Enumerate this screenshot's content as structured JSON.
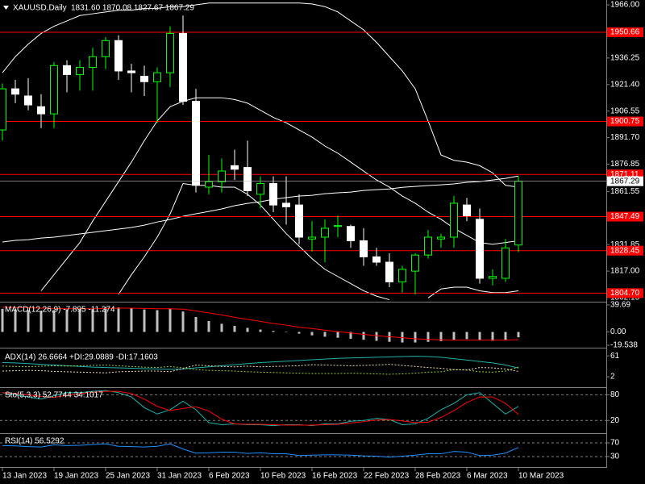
{
  "chart_data": [
    {
      "type": "candlestick",
      "title": "XAUUSD,Daily",
      "title_values": "1831.60 1870.08 1827.67 1867.29",
      "categories": [
        "13 Jan 2023",
        null,
        null,
        null,
        "19 Jan 2023",
        null,
        null,
        null,
        "25 Jan 2023",
        null,
        null,
        null,
        "31 Jan 2023",
        null,
        null,
        null,
        "6 Feb 2023",
        null,
        null,
        null,
        "10 Feb 2023",
        null,
        null,
        null,
        "16 Feb 2023",
        null,
        null,
        null,
        "22 Feb 2023",
        null,
        null,
        null,
        "28 Feb 2023",
        null,
        null,
        null,
        "6 Mar 2023",
        null,
        null,
        null,
        "10 Mar 2023"
      ],
      "open": [
        1896,
        1919,
        1915,
        1909,
        1905,
        1932,
        1927,
        1931,
        1937,
        1946,
        1929,
        1926,
        1923,
        1928,
        1950,
        1912,
        1864,
        1867,
        1876,
        1875,
        1860,
        1866,
        1855,
        1854,
        1835,
        1836,
        1842,
        1842,
        1834,
        1825,
        1822,
        1811,
        1817,
        1826,
        1835,
        1836,
        1854,
        1846,
        1813,
        1813,
        1831.6
      ],
      "high": [
        1922,
        1924,
        1925,
        1916,
        1934,
        1935,
        1935,
        1942,
        1948,
        1949,
        1933,
        1932,
        1931,
        1954,
        1960,
        1919,
        1882,
        1880,
        1885,
        1890,
        1870,
        1870,
        1870,
        1860,
        1845,
        1846,
        1848,
        1843,
        1841,
        1830,
        1827,
        1820,
        1827,
        1840,
        1838,
        1859,
        1858,
        1852,
        1818,
        1835,
        1870.08
      ],
      "low": [
        1890,
        1911,
        1907,
        1897,
        1897,
        1917,
        1918,
        1918,
        1930,
        1924,
        1917,
        1915,
        1900,
        1920,
        1910,
        1861,
        1860,
        1861,
        1868,
        1859,
        1852,
        1850,
        1843,
        1832,
        1828,
        1822,
        1836,
        1830,
        1820,
        1820,
        1808,
        1805,
        1804,
        1824,
        1830,
        1830,
        1845,
        1810,
        1809,
        1811,
        1827.67
      ],
      "close": [
        1919,
        1916,
        1910,
        1905,
        1932,
        1927,
        1931,
        1937,
        1946,
        1929,
        1928,
        1923,
        1928,
        1950,
        1912,
        1865,
        1867,
        1873,
        1874,
        1862,
        1866,
        1854,
        1853,
        1836,
        1836,
        1841,
        1842.5,
        1834,
        1825,
        1822,
        1811,
        1818,
        1826,
        1836,
        1836,
        1855,
        1848,
        1813,
        1814,
        1830,
        1867.29
      ],
      "up_color": "#00ff00",
      "down_color": "#ffffff",
      "overlays": [
        {
          "color": "#ffffff",
          "values": [
            1928,
            1937,
            1944,
            1950,
            1954,
            1957,
            1960,
            1961,
            1962,
            1963,
            1963,
            1964,
            1964,
            1965,
            1965,
            1966,
            1967,
            1967,
            1967,
            1967,
            1967,
            1967,
            1967,
            1967,
            1966.5,
            1965,
            1962,
            1957,
            1952,
            1945,
            1937,
            1929,
            1919,
            1901,
            1882,
            1879,
            1878,
            1876,
            1872,
            1865,
            1864
          ]
        },
        {
          "color": "#ffffff",
          "values": [
            null,
            null,
            null,
            1806,
            1815,
            1824,
            1833,
            1845,
            1856,
            1867,
            1878,
            1890,
            1901,
            1909,
            1912,
            1914,
            1914,
            1914,
            1913,
            1911,
            1907,
            1903,
            1900,
            1896,
            1892,
            1887,
            1883,
            1878,
            1873,
            1868,
            1864,
            1859,
            1855,
            1850,
            1846,
            1841,
            1837,
            1833,
            1832,
            1833,
            1834
          ]
        },
        {
          "color": "#ffffff",
          "values": [
            null,
            null,
            null,
            null,
            null,
            null,
            null,
            null,
            null,
            1804,
            1815,
            1825,
            1836,
            1849,
            1866,
            1865,
            1865,
            1864,
            1864,
            1860,
            1854,
            1846,
            1838,
            1831,
            1824,
            1818,
            1814,
            1810,
            1806,
            1803,
            1801,
            null,
            null,
            1802,
            1807,
            1808,
            1808,
            1806,
            1805,
            1805,
            1806
          ]
        },
        {
          "color": "#ffffff",
          "values": [
            1833.3,
            1834.2,
            1834.6,
            1835.5,
            1836,
            1836.9,
            1837.8,
            1838.7,
            1839.6,
            1840.5,
            1841.4,
            1842.7,
            1844.5,
            1845.9,
            1847.7,
            1849.1,
            1850.4,
            1851.8,
            1853.6,
            1854.9,
            1855.8,
            1857.2,
            1858.1,
            1859,
            1859.4,
            1860.3,
            1860.8,
            1861.2,
            1862.1,
            1862.6,
            1863,
            1863.9,
            1864.4,
            1864.9,
            1865.3,
            1865.8,
            1866.7,
            1867.1,
            1868,
            1868.9,
            1870.2
          ]
        }
      ],
      "levels": [
        1950.66,
        1900.75,
        1871.11,
        1847.49,
        1828.45,
        {
          "value": 1804.7,
          "label": "1804.70"
        }
      ],
      "level_color": "#ff0000",
      "ylim": [
        1800.8,
        1968.7
      ],
      "yticks": [
        {
          "value": 1966,
          "label": "1966.00"
        },
        1936.25,
        {
          "value": 1921.4,
          "label": "1921.40"
        },
        1906.55,
        {
          "value": 1891.7,
          "label": "1891.70"
        },
        1876.85,
        1861.55,
        1831.85,
        {
          "value": 1817,
          "label": "1817.00"
        },
        1802.15
      ]
    },
    {
      "type": "macd",
      "label": "MACD(12,26,9) -7.895 -11.274",
      "color": "#c0c0c0",
      "signal_color": "#ff0000",
      "values": [
        34,
        33,
        32,
        31,
        32,
        33,
        33,
        34,
        36,
        36,
        35,
        33,
        32,
        34,
        30,
        22,
        16,
        12,
        9,
        6,
        3.5,
        1.5,
        -0.5,
        -2.5,
        -5,
        -7,
        -8.5,
        -10,
        -11.5,
        -13,
        -14.5,
        -15.5,
        -15.5,
        -14.5,
        -13.5,
        -11.5,
        -10.5,
        -12,
        -13,
        -12.5,
        -7.895
      ],
      "signal": [
        36.5,
        36,
        35.5,
        35,
        34.5,
        34,
        34,
        34,
        34.5,
        35,
        35,
        34.5,
        34,
        34,
        33.5,
        31,
        28,
        25,
        21.5,
        18.5,
        15.5,
        12.5,
        10,
        7,
        5,
        2.5,
        0.5,
        -1.5,
        -3.5,
        -5.5,
        -7,
        -8.5,
        -10,
        -11,
        -11.5,
        -12,
        -12,
        -12,
        -12,
        -12,
        -11.274
      ],
      "ylim": [
        -19.538,
        39.69
      ],
      "yticks": [
        39.69,
        {
          "value": 0,
          "label": "0.00"
        },
        -19.538
      ]
    },
    {
      "type": "line",
      "label": "ADX(14) 26.6664 +DI:29.0889 -DI:17.1603",
      "ylim": [
        -23,
        75
      ],
      "yticks": [
        61,
        2
      ],
      "level_lines": false,
      "series": [
        {
          "color": "#20b2aa",
          "style": "solid",
          "values": [
            42,
            41,
            39,
            37,
            35,
            33,
            31,
            29,
            28,
            27,
            26,
            25,
            24,
            23,
            24,
            27,
            30,
            33,
            36,
            39,
            42,
            44,
            46,
            48,
            50,
            52,
            54,
            55,
            56,
            57,
            58,
            59,
            60,
            59,
            57,
            53,
            49,
            45,
            41,
            35,
            26.6664
          ]
        },
        {
          "color": "#9acd32",
          "style": "dotted",
          "values": [
            32,
            31,
            30,
            32,
            33,
            32,
            33,
            34,
            35,
            33,
            31,
            29,
            28,
            31,
            27,
            22,
            20,
            19,
            18,
            16,
            15,
            14,
            13,
            12,
            11,
            11,
            11,
            12,
            11,
            10,
            9,
            10,
            12,
            15,
            16,
            22,
            21,
            16,
            15,
            18,
            29.0889
          ]
        },
        {
          "color": "#f5deb3",
          "style": "dotted",
          "values": [
            18,
            19,
            20,
            19,
            17,
            16,
            15,
            14,
            13,
            16,
            17,
            18,
            18,
            16,
            25,
            35,
            33,
            31,
            30,
            32,
            30,
            31,
            32,
            33,
            36,
            35,
            34,
            33,
            34,
            35,
            37,
            34,
            31,
            28,
            26,
            22,
            21,
            28,
            27,
            24,
            17.1603
          ]
        }
      ]
    },
    {
      "type": "line",
      "label": "Sto(5,3,3) 52.7744 34.1017",
      "ylim": [
        -6,
        94
      ],
      "yticks": [
        80,
        20
      ],
      "level_lines": true,
      "series": [
        {
          "color": "#20b2aa",
          "style": "solid",
          "values": [
            85,
            80,
            75,
            70,
            78,
            85,
            85,
            88,
            90,
            85,
            75,
            50,
            35,
            45,
            65,
            45,
            15,
            10,
            12,
            10,
            10,
            8,
            10,
            10,
            8,
            12,
            12,
            18,
            20,
            25,
            22,
            10,
            12,
            25,
            45,
            60,
            80,
            85,
            60,
            35,
            52.7744
          ]
        },
        {
          "color": "#ff0000",
          "style": "solid",
          "values": [
            85,
            83,
            80,
            76,
            74,
            79,
            83,
            86,
            88,
            88,
            83,
            70,
            53,
            43,
            48,
            52,
            42,
            23,
            12,
            11,
            11,
            10,
            9,
            9,
            9,
            10,
            11,
            14,
            17,
            21,
            22,
            19,
            15,
            16,
            27,
            43,
            62,
            75,
            75,
            60,
            34.1017
          ]
        }
      ]
    },
    {
      "type": "line",
      "label": "RSI(14) 56.5292",
      "ylim": [
        4,
        93.5
      ],
      "yticks": [
        70,
        30
      ],
      "level_lines": true,
      "series": [
        {
          "color": "#1e90ff",
          "style": "solid",
          "values": [
            62,
            61,
            59,
            58,
            64,
            62,
            63,
            65,
            67,
            60,
            59,
            58,
            60,
            67,
            52,
            40,
            41,
            43,
            43,
            39,
            41,
            38,
            38,
            33,
            34,
            35,
            35,
            34,
            32,
            31,
            28,
            31,
            34,
            38,
            38,
            45,
            43,
            33,
            34,
            40,
            56.5292
          ]
        }
      ]
    }
  ]
}
